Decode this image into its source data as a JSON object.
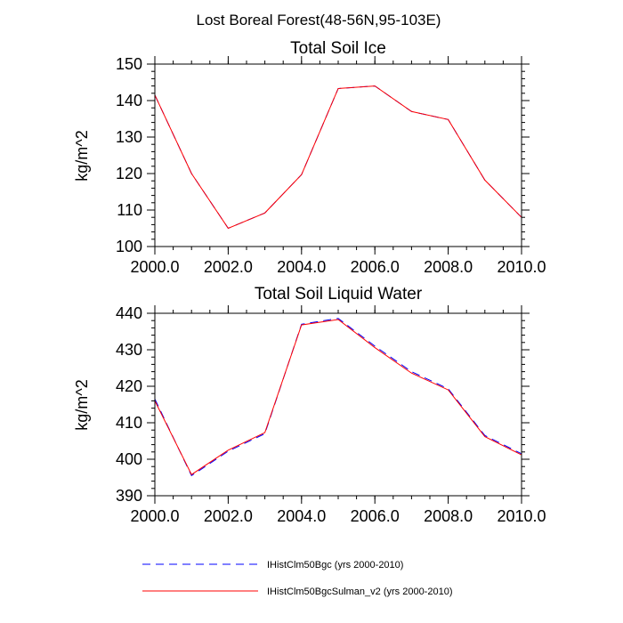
{
  "figure_title": "Lost Boreal Forest(48-56N,95-103E)",
  "chart_data": [
    {
      "type": "line",
      "title": "Total Soil Ice",
      "xlabel": "",
      "ylabel": "kg/m^2",
      "xlim": [
        2000,
        2010
      ],
      "ylim": [
        100,
        150
      ],
      "x_ticks": [
        "2000.0",
        "2002.0",
        "2004.0",
        "2006.0",
        "2008.0",
        "2010.0"
      ],
      "y_ticks": [
        "100",
        "110",
        "120",
        "130",
        "140",
        "150"
      ],
      "x": [
        2000,
        2001,
        2002,
        2003,
        2004,
        2005,
        2006,
        2007,
        2008,
        2009,
        2010
      ],
      "series": [
        {
          "name": "IHistClm50Bgc (yrs 2000-2010)",
          "color": "#0000ff",
          "style": "dashed",
          "values": [
            141.5,
            120.0,
            105.0,
            109.2,
            119.7,
            143.3,
            144.0,
            137.0,
            134.8,
            118.2,
            108.0
          ]
        },
        {
          "name": "IHistClm50BgcSulman_v2 (yrs 2000-2010)",
          "color": "#ff0000",
          "style": "solid",
          "values": [
            141.5,
            120.0,
            105.0,
            109.2,
            119.7,
            143.3,
            144.0,
            137.0,
            134.8,
            118.2,
            108.0
          ]
        }
      ]
    },
    {
      "type": "line",
      "title": "Total Soil Liquid Water",
      "xlabel": "",
      "ylabel": "kg/m^2",
      "xlim": [
        2000,
        2010
      ],
      "ylim": [
        390,
        440
      ],
      "x_ticks": [
        "2000.0",
        "2002.0",
        "2004.0",
        "2006.0",
        "2008.0",
        "2010.0"
      ],
      "y_ticks": [
        "390",
        "400",
        "410",
        "420",
        "430",
        "440"
      ],
      "x": [
        2000,
        2001,
        2002,
        2003,
        2004,
        2005,
        2006,
        2007,
        2008,
        2009,
        2010
      ],
      "series": [
        {
          "name": "IHistClm50Bgc (yrs 2000-2010)",
          "color": "#0000ff",
          "style": "dashed",
          "values": [
            416.5,
            395.5,
            402.2,
            407.0,
            437.0,
            438.6,
            431.0,
            424.0,
            419.3,
            406.5,
            401.5
          ]
        },
        {
          "name": "IHistClm50BgcSulman_v2 (yrs 2000-2010)",
          "color": "#ff0000",
          "style": "solid",
          "values": [
            416.0,
            395.8,
            402.5,
            407.3,
            436.8,
            438.3,
            430.6,
            423.6,
            419.0,
            406.2,
            401.2
          ]
        }
      ]
    }
  ],
  "legend": {
    "placement": "bottom",
    "entries": [
      {
        "label": "IHistClm50Bgc (yrs 2000-2010)",
        "color": "#0000ff",
        "style": "dashed"
      },
      {
        "label": "IHistClm50BgcSulman_v2 (yrs 2000-2010)",
        "color": "#ff0000",
        "style": "solid"
      }
    ]
  }
}
